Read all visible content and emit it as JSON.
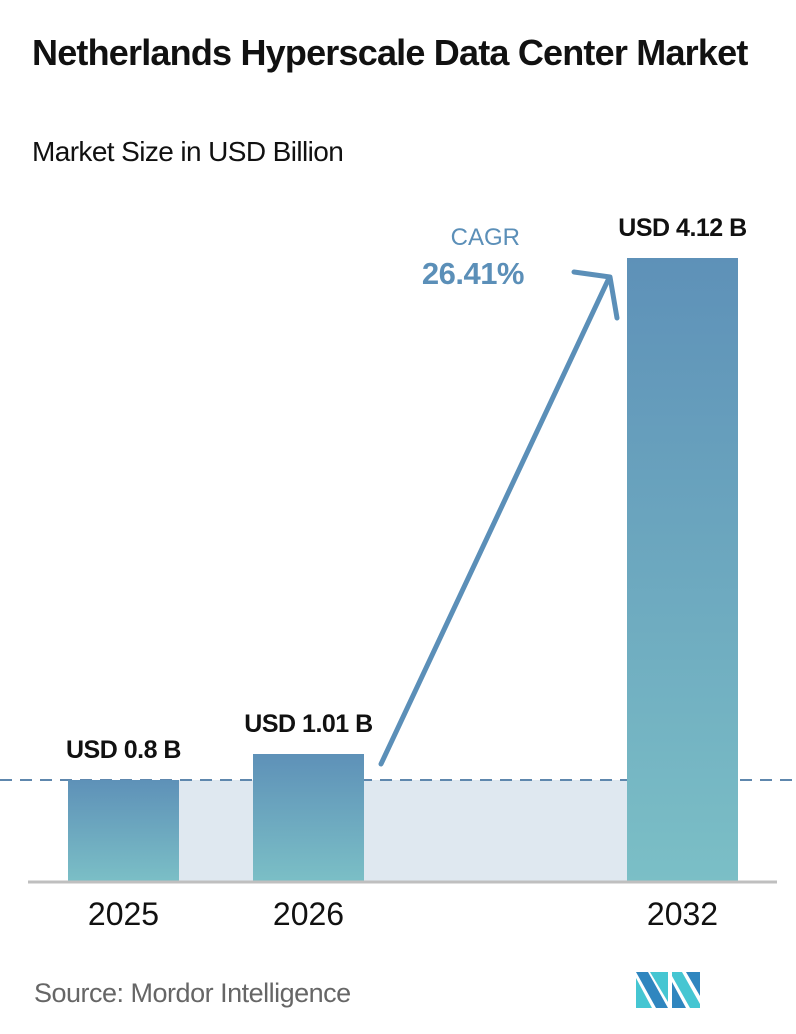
{
  "header": {
    "title": "Netherlands Hyperscale Data Center Market",
    "subtitle": "Market Size in USD Billion"
  },
  "annotation": {
    "cagr_label": "CAGR",
    "cagr_value": "26.41%",
    "color": "#5b8fb8"
  },
  "footer": {
    "source": "Source:  Mordor Intelligence",
    "logo": "mordor-intelligence-logo"
  },
  "colors": {
    "bar_top": "#5e91b8",
    "bar_bottom": "#7bbfc6",
    "band": "#dfe8f0",
    "dashed_line": "#5e87ad",
    "baseline": "#bfbfbf",
    "logo_dark": "#2f86bf",
    "logo_light": "#45c6d2"
  },
  "chart_data": {
    "type": "bar",
    "title": "Netherlands Hyperscale Data Center Market",
    "subtitle": "Market Size in USD Billion",
    "xlabel": "",
    "ylabel": "Market Size in USD Billion",
    "categories": [
      "2025",
      "2026",
      "2032"
    ],
    "values": [
      0.8,
      1.01,
      4.12
    ],
    "data_labels": [
      "USD 0.8 B",
      "USD 1.01 B",
      "USD 4.12 B"
    ],
    "annotations": [
      {
        "text": "CAGR",
        "value": "26.41%",
        "from": "2026",
        "to": "2032",
        "kind": "arrow"
      }
    ],
    "reference_line": {
      "value": 0.8,
      "style": "dashed"
    },
    "grid": false,
    "legend": null,
    "ylim": [
      0,
      4.12
    ],
    "source": "Mordor Intelligence"
  }
}
